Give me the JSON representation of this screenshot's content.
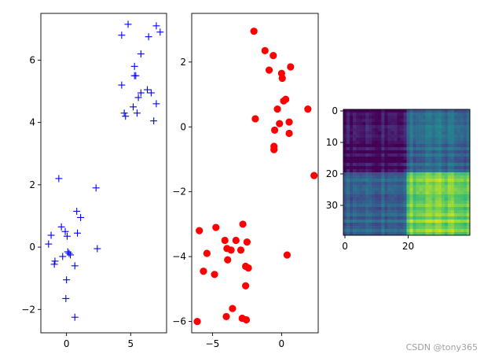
{
  "chart_data": [
    {
      "type": "scatter",
      "marker": "+",
      "color": "#0000ff",
      "xlim": [
        -2.0,
        7.8
      ],
      "ylim": [
        -2.75,
        7.5
      ],
      "xticks": [
        0,
        5
      ],
      "xtick_labels": [
        "0",
        "5"
      ],
      "yticks": [
        -2,
        0,
        2,
        4,
        6
      ],
      "ytick_labels": [
        "−2",
        "0",
        "2",
        "4",
        "6"
      ],
      "points": [
        [
          -1.4,
          0.1
        ],
        [
          -1.2,
          0.38
        ],
        [
          -0.9,
          -0.45
        ],
        [
          -0.95,
          -0.55
        ],
        [
          -0.6,
          2.2
        ],
        [
          -0.4,
          0.65
        ],
        [
          -0.3,
          -0.3
        ],
        [
          -0.1,
          0.5
        ],
        [
          0.0,
          -1.05
        ],
        [
          0.05,
          0.35
        ],
        [
          0.1,
          -0.15
        ],
        [
          0.2,
          -0.2
        ],
        [
          0.3,
          -0.25
        ],
        [
          0.8,
          1.15
        ],
        [
          0.65,
          -0.6
        ],
        [
          0.85,
          0.45
        ],
        [
          1.1,
          0.95
        ],
        [
          -0.05,
          -1.65
        ],
        [
          0.65,
          -2.25
        ],
        [
          2.3,
          1.9
        ],
        [
          2.4,
          -0.05
        ],
        [
          4.3,
          6.8
        ],
        [
          4.8,
          7.15
        ],
        [
          6.4,
          6.75
        ],
        [
          7.0,
          7.1
        ],
        [
          7.3,
          6.9
        ],
        [
          5.3,
          5.5
        ],
        [
          5.4,
          5.5
        ],
        [
          5.8,
          6.2
        ],
        [
          5.3,
          5.8
        ],
        [
          4.3,
          5.2
        ],
        [
          5.6,
          4.8
        ],
        [
          5.8,
          4.95
        ],
        [
          6.3,
          5.05
        ],
        [
          6.6,
          4.95
        ],
        [
          7.0,
          4.6
        ],
        [
          4.5,
          4.3
        ],
        [
          4.6,
          4.2
        ],
        [
          5.2,
          4.5
        ],
        [
          5.5,
          4.3
        ],
        [
          6.8,
          4.05
        ]
      ]
    },
    {
      "type": "scatter",
      "marker": "o",
      "color": "#ff0000",
      "xlim": [
        -6.5,
        2.65
      ],
      "ylim": [
        -6.35,
        3.5
      ],
      "xticks": [
        -5,
        0
      ],
      "xtick_labels": [
        "−5",
        "0"
      ],
      "yticks": [
        -6,
        -4,
        -2,
        0,
        2
      ],
      "ytick_labels": [
        "−6",
        "−4",
        "−2",
        "0",
        "2"
      ],
      "points": [
        [
          -2.0,
          2.95
        ],
        [
          -1.2,
          2.35
        ],
        [
          -0.6,
          2.2
        ],
        [
          0.65,
          1.85
        ],
        [
          -0.9,
          1.75
        ],
        [
          0.0,
          1.65
        ],
        [
          0.05,
          1.5
        ],
        [
          0.3,
          0.85
        ],
        [
          0.15,
          0.8
        ],
        [
          -0.3,
          0.55
        ],
        [
          1.9,
          0.55
        ],
        [
          -1.9,
          0.25
        ],
        [
          -0.15,
          0.1
        ],
        [
          0.55,
          0.15
        ],
        [
          -0.5,
          -0.1
        ],
        [
          0.55,
          -0.2
        ],
        [
          -0.55,
          -0.6
        ],
        [
          -0.55,
          -0.7
        ],
        [
          2.35,
          -1.5
        ],
        [
          -2.8,
          -3.0
        ],
        [
          -5.95,
          -3.2
        ],
        [
          -4.75,
          -3.1
        ],
        [
          -4.1,
          -3.5
        ],
        [
          -3.3,
          -3.5
        ],
        [
          -2.5,
          -3.55
        ],
        [
          -3.95,
          -3.75
        ],
        [
          -3.65,
          -3.8
        ],
        [
          -2.95,
          -3.8
        ],
        [
          -5.4,
          -3.9
        ],
        [
          0.4,
          -3.95
        ],
        [
          -3.9,
          -4.1
        ],
        [
          -2.6,
          -4.3
        ],
        [
          -2.4,
          -4.35
        ],
        [
          -5.65,
          -4.45
        ],
        [
          -4.85,
          -4.55
        ],
        [
          -2.6,
          -4.9
        ],
        [
          -3.55,
          -5.6
        ],
        [
          -4.0,
          -5.85
        ],
        [
          -2.85,
          -5.9
        ],
        [
          -2.55,
          -5.95
        ],
        [
          -6.1,
          -6.0
        ]
      ]
    },
    {
      "type": "heatmap",
      "colormap": "viridis",
      "rows": 40,
      "cols": 40,
      "blocks": [
        {
          "rows": [
            0,
            19
          ],
          "cols": [
            0,
            19
          ],
          "level": 0.04
        },
        {
          "rows": [
            0,
            19
          ],
          "cols": [
            20,
            39
          ],
          "level": 0.33
        },
        {
          "rows": [
            20,
            39
          ],
          "cols": [
            0,
            19
          ],
          "level": 0.33
        },
        {
          "rows": [
            20,
            39
          ],
          "cols": [
            20,
            39
          ],
          "level": 0.8
        }
      ],
      "xticks": [
        0,
        20
      ],
      "xtick_labels": [
        "0",
        "20"
      ],
      "yticks": [
        0,
        10,
        20,
        30
      ],
      "ytick_labels": [
        "0",
        "10",
        "20",
        "30"
      ]
    }
  ],
  "watermark": "CSDN @tony365"
}
